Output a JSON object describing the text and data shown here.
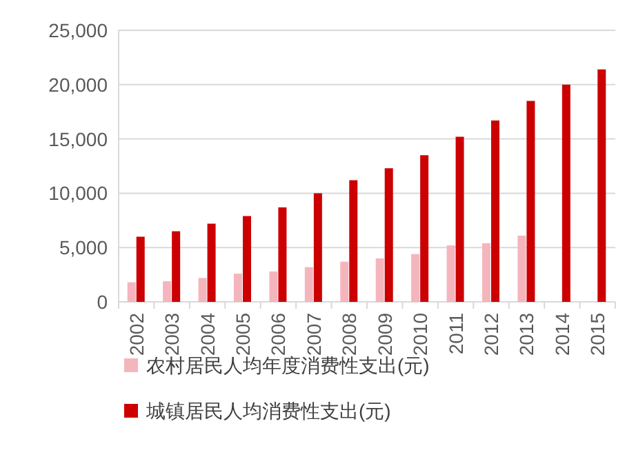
{
  "chart_data": {
    "type": "bar",
    "categories": [
      "2002",
      "2003",
      "2004",
      "2005",
      "2006",
      "2007",
      "2008",
      "2009",
      "2010",
      "2011",
      "2012",
      "2013",
      "2014",
      "2015"
    ],
    "series": [
      {
        "name": "农村居民人均年度消费性支出(元)",
        "color": "#f5b5bd",
        "values": [
          1800,
          1900,
          2200,
          2600,
          2800,
          3200,
          3700,
          4000,
          4400,
          5200,
          5400,
          6100,
          null,
          null
        ]
      },
      {
        "name": "城镇居民人均消费性支出(元)",
        "color": "#cc0000",
        "values": [
          6000,
          6500,
          7200,
          7900,
          8700,
          10000,
          11200,
          12300,
          13500,
          15200,
          16700,
          18500,
          20000,
          21400
        ]
      }
    ],
    "ylim": [
      0,
      25000
    ],
    "yticks": [
      0,
      {
        "value": 5000,
        "label": "5,000"
      },
      {
        "value": 10000,
        "label": "10,000"
      },
      {
        "value": 15000,
        "label": "15,000"
      },
      {
        "value": 20000,
        "label": "20,000"
      },
      {
        "value": 25000,
        "label": "25,000"
      }
    ],
    "grid": "y",
    "legend": "bottom"
  }
}
